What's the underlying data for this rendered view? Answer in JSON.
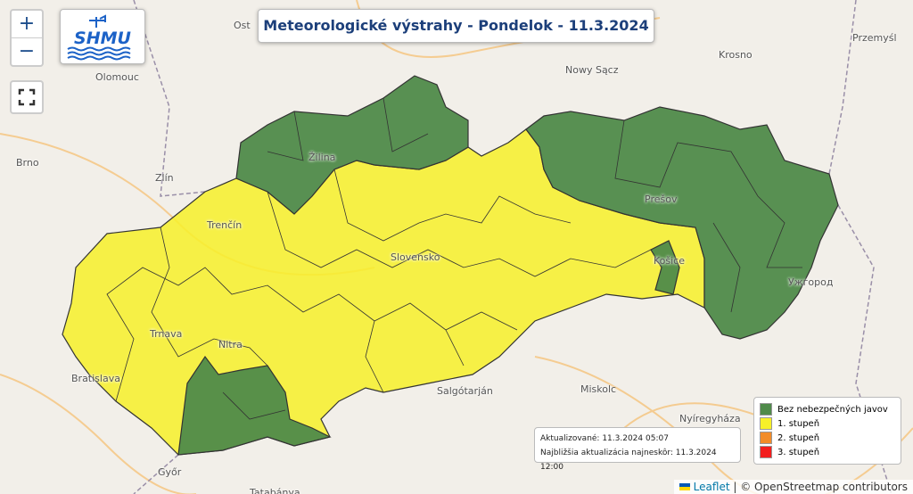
{
  "title": "Meteorologické výstrahy - Pondelok - 11.3.2024",
  "controls": {
    "zoom_in": "+",
    "zoom_out": "−",
    "fullscreen_icon": "fullscreen-icon"
  },
  "logo": {
    "text": "SHMU"
  },
  "cities": [
    {
      "name": "Ost"
    },
    {
      "name": "Olomouc"
    },
    {
      "name": "Brno"
    },
    {
      "name": "Zlín"
    },
    {
      "name": "Žilina"
    },
    {
      "name": "Trenčín"
    },
    {
      "name": "Trnava"
    },
    {
      "name": "Nitra"
    },
    {
      "name": "Bratislava"
    },
    {
      "name": "Győr"
    },
    {
      "name": "Tatabánya"
    },
    {
      "name": "Salgótarján"
    },
    {
      "name": "Miskolc"
    },
    {
      "name": "Nyíregyháza"
    },
    {
      "name": "Košice"
    },
    {
      "name": "Prešov"
    },
    {
      "name": "Slovensko"
    },
    {
      "name": "Nowy Sącz"
    },
    {
      "name": "Krosno"
    },
    {
      "name": "Przemyśl"
    },
    {
      "name": "Ужгород"
    }
  ],
  "info": {
    "updated": "Aktualizované: 11.3.2024 05:07",
    "next": "Najbližšia aktualizácia najneskôr: 11.3.2024 12:00"
  },
  "legend": [
    {
      "label": "Bez nebezpečných javov",
      "color": "#4f8a4a"
    },
    {
      "label": "1. stupeň",
      "color": "#f7f029"
    },
    {
      "label": "2. stupeň",
      "color": "#f28c28"
    },
    {
      "label": "3. stupeň",
      "color": "#f21e1e"
    }
  ],
  "attribution": {
    "leaflet": "Leaflet",
    "osm": "| © OpenStreetmap contributors"
  }
}
